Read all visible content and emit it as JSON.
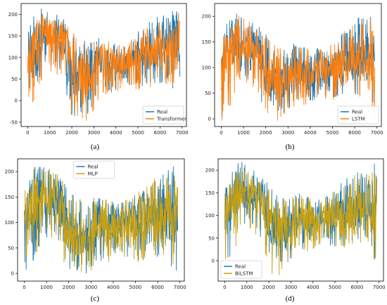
{
  "chart_data": [
    {
      "type": "line",
      "caption": "(a)",
      "xlim": [
        -300,
        7200
      ],
      "ylim": [
        -60,
        225
      ],
      "xticks": [
        0,
        1000,
        2000,
        3000,
        4000,
        5000,
        6000,
        7000
      ],
      "yticks": [
        -50,
        0,
        50,
        100,
        150,
        200
      ],
      "legend_position": "lower-right",
      "grid": false,
      "x": [
        0,
        400,
        800,
        1200,
        1600,
        2000,
        2400,
        2800,
        3200,
        3600,
        4000,
        4400,
        4800,
        5200,
        5600,
        6000,
        6400,
        6800
      ],
      "series": [
        {
          "name": "Real",
          "color": "#1f77b4",
          "center": [
            100,
            140,
            155,
            145,
            150,
            80,
            60,
            50,
            95,
            90,
            85,
            90,
            100,
            105,
            110,
            115,
            125,
            130
          ],
          "band": [
            [
              0,
              160
            ],
            [
              15,
              215
            ],
            [
              75,
              215
            ],
            [
              75,
              205
            ],
            [
              50,
              190
            ],
            [
              -35,
              170
            ],
            [
              -40,
              150
            ],
            [
              -40,
              140
            ],
            [
              5,
              150
            ],
            [
              20,
              150
            ],
            [
              20,
              140
            ],
            [
              40,
              140
            ],
            [
              30,
              155
            ],
            [
              30,
              170
            ],
            [
              35,
              185
            ],
            [
              40,
              200
            ],
            [
              40,
              205
            ],
            [
              5,
              215
            ]
          ]
        },
        {
          "name": "Transformer",
          "color": "#ff7f0e",
          "center": [
            100,
            140,
            155,
            145,
            150,
            80,
            60,
            50,
            95,
            90,
            85,
            90,
            100,
            105,
            110,
            115,
            125,
            130
          ],
          "band": [
            [
              -10,
              160
            ],
            [
              0,
              200
            ],
            [
              65,
              200
            ],
            [
              65,
              195
            ],
            [
              40,
              185
            ],
            [
              -50,
              165
            ],
            [
              -55,
              145
            ],
            [
              -50,
              135
            ],
            [
              0,
              145
            ],
            [
              15,
              145
            ],
            [
              10,
              135
            ],
            [
              35,
              135
            ],
            [
              25,
              150
            ],
            [
              25,
              165
            ],
            [
              30,
              180
            ],
            [
              35,
              195
            ],
            [
              35,
              200
            ],
            [
              0,
              205
            ]
          ]
        }
      ]
    },
    {
      "type": "line",
      "caption": "(b)",
      "xlim": [
        -300,
        7200
      ],
      "ylim": [
        -15,
        225
      ],
      "xticks": [
        0,
        1000,
        2000,
        3000,
        4000,
        5000,
        6000,
        7000
      ],
      "yticks": [
        0,
        50,
        100,
        150,
        200
      ],
      "legend_position": "lower-right",
      "grid": false,
      "x": [
        0,
        400,
        800,
        1200,
        1600,
        2000,
        2400,
        2800,
        3200,
        3600,
        4000,
        4400,
        4800,
        5200,
        5600,
        6000,
        6400,
        6800
      ],
      "series": [
        {
          "name": "Real",
          "color": "#1f77b4",
          "center": [
            95,
            135,
            150,
            140,
            145,
            85,
            70,
            65,
            95,
            90,
            90,
            95,
            100,
            105,
            110,
            115,
            120,
            125
          ],
          "band": [
            [
              0,
              155
            ],
            [
              20,
              215
            ],
            [
              80,
              215
            ],
            [
              75,
              205
            ],
            [
              55,
              185
            ],
            [
              5,
              165
            ],
            [
              0,
              150
            ],
            [
              0,
              140
            ],
            [
              25,
              150
            ],
            [
              30,
              150
            ],
            [
              30,
              140
            ],
            [
              45,
              140
            ],
            [
              40,
              150
            ],
            [
              40,
              165
            ],
            [
              45,
              180
            ],
            [
              45,
              195
            ],
            [
              45,
              200
            ],
            [
              0,
              215
            ]
          ]
        },
        {
          "name": "LSTM",
          "color": "#ff7f0e",
          "center": [
            95,
            135,
            150,
            140,
            145,
            85,
            70,
            65,
            95,
            90,
            90,
            95,
            100,
            105,
            110,
            115,
            120,
            125
          ],
          "band": [
            [
              -5,
              150
            ],
            [
              15,
              200
            ],
            [
              75,
              200
            ],
            [
              70,
              195
            ],
            [
              50,
              180
            ],
            [
              -5,
              160
            ],
            [
              -10,
              145
            ],
            [
              -5,
              135
            ],
            [
              20,
              145
            ],
            [
              25,
              145
            ],
            [
              25,
              135
            ],
            [
              40,
              135
            ],
            [
              35,
              145
            ],
            [
              35,
              160
            ],
            [
              40,
              175
            ],
            [
              40,
              190
            ],
            [
              40,
              195
            ],
            [
              -5,
              205
            ]
          ]
        }
      ]
    },
    {
      "type": "line",
      "caption": "(c)",
      "xlim": [
        -300,
        7200
      ],
      "ylim": [
        -15,
        225
      ],
      "xticks": [
        0,
        1000,
        2000,
        3000,
        4000,
        5000,
        6000,
        7000
      ],
      "yticks": [
        0,
        50,
        100,
        150,
        200
      ],
      "legend_position": "top-center",
      "grid": false,
      "x": [
        0,
        400,
        800,
        1200,
        1600,
        2000,
        2400,
        2800,
        3200,
        3600,
        4000,
        4400,
        4800,
        5200,
        5600,
        6000,
        6400,
        6800
      ],
      "series": [
        {
          "name": "Real",
          "color": "#1f77b4",
          "center": [
            100,
            140,
            150,
            140,
            145,
            85,
            70,
            65,
            95,
            90,
            90,
            95,
            100,
            105,
            110,
            115,
            120,
            125
          ],
          "band": [
            [
              0,
              170
            ],
            [
              5,
              220
            ],
            [
              70,
              220
            ],
            [
              70,
              205
            ],
            [
              40,
              195
            ],
            [
              0,
              170
            ],
            [
              0,
              150
            ],
            [
              0,
              140
            ],
            [
              10,
              150
            ],
            [
              20,
              150
            ],
            [
              20,
              140
            ],
            [
              30,
              140
            ],
            [
              20,
              155
            ],
            [
              20,
              165
            ],
            [
              25,
              180
            ],
            [
              30,
              195
            ],
            [
              30,
              200
            ],
            [
              0,
              220
            ]
          ]
        },
        {
          "name": "MLP",
          "color": "#c8a010",
          "center": [
            100,
            140,
            150,
            140,
            145,
            85,
            70,
            65,
            95,
            90,
            90,
            95,
            100,
            105,
            110,
            115,
            120,
            125
          ],
          "band": [
            [
              0,
              170
            ],
            [
              5,
              220
            ],
            [
              70,
              220
            ],
            [
              70,
              205
            ],
            [
              40,
              195
            ],
            [
              0,
              170
            ],
            [
              0,
              150
            ],
            [
              0,
              140
            ],
            [
              10,
              150
            ],
            [
              20,
              150
            ],
            [
              20,
              140
            ],
            [
              30,
              140
            ],
            [
              20,
              155
            ],
            [
              20,
              165
            ],
            [
              25,
              180
            ],
            [
              30,
              195
            ],
            [
              30,
              200
            ],
            [
              0,
              215
            ]
          ]
        }
      ]
    },
    {
      "type": "line",
      "caption": "(d)",
      "xlim": [
        -300,
        7200
      ],
      "ylim": [
        -45,
        225
      ],
      "xticks": [
        0,
        1000,
        2000,
        3000,
        4000,
        5000,
        6000,
        7000
      ],
      "yticks": [
        0,
        50,
        100,
        150,
        200
      ],
      "legend_position": "lower-left",
      "grid": false,
      "x": [
        0,
        400,
        800,
        1200,
        1600,
        2000,
        2400,
        2800,
        3200,
        3600,
        4000,
        4400,
        4800,
        5200,
        5600,
        6000,
        6400,
        6800
      ],
      "series": [
        {
          "name": "Real",
          "color": "#1f77b4",
          "center": [
            95,
            140,
            150,
            140,
            145,
            85,
            70,
            65,
            95,
            90,
            90,
            95,
            100,
            105,
            110,
            115,
            120,
            125
          ],
          "band": [
            [
              0,
              160
            ],
            [
              15,
              220
            ],
            [
              80,
              220
            ],
            [
              75,
              205
            ],
            [
              50,
              190
            ],
            [
              -5,
              170
            ],
            [
              -10,
              150
            ],
            [
              -10,
              140
            ],
            [
              20,
              150
            ],
            [
              25,
              150
            ],
            [
              25,
              140
            ],
            [
              40,
              140
            ],
            [
              30,
              155
            ],
            [
              30,
              170
            ],
            [
              35,
              185
            ],
            [
              40,
              200
            ],
            [
              40,
              205
            ],
            [
              0,
              215
            ]
          ]
        },
        {
          "name": "BiLSTM",
          "color": "#c8a010",
          "center": [
            95,
            140,
            150,
            140,
            145,
            85,
            70,
            65,
            95,
            90,
            90,
            95,
            100,
            105,
            110,
            115,
            120,
            125
          ],
          "band": [
            [
              -10,
              155
            ],
            [
              10,
              205
            ],
            [
              75,
              205
            ],
            [
              70,
              195
            ],
            [
              45,
              185
            ],
            [
              -30,
              165
            ],
            [
              -35,
              145
            ],
            [
              -30,
              135
            ],
            [
              15,
              145
            ],
            [
              20,
              145
            ],
            [
              20,
              135
            ],
            [
              35,
              135
            ],
            [
              25,
              150
            ],
            [
              25,
              165
            ],
            [
              30,
              180
            ],
            [
              35,
              195
            ],
            [
              35,
              200
            ],
            [
              -5,
              205
            ]
          ]
        }
      ]
    }
  ]
}
